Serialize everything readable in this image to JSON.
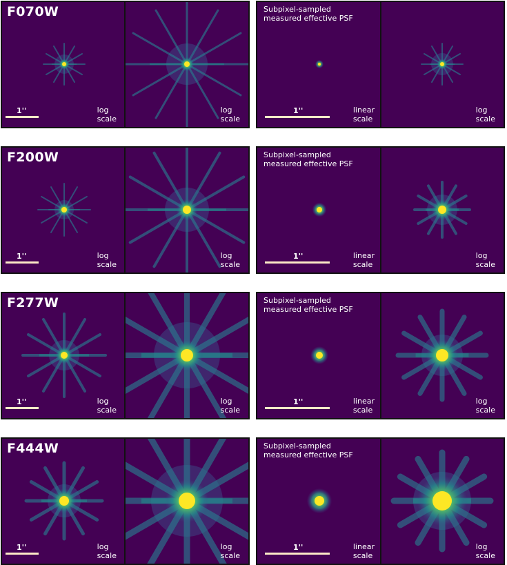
{
  "rows": [
    {
      "filter": "F070W",
      "note_line1": "Subpixel-sampled",
      "note_line2": "measured effective PSF",
      "arcsec": "1''",
      "panels": [
        {
          "scale_line1": "log",
          "scale_line2": "scale"
        },
        {
          "scale_line1": "log",
          "scale_line2": "scale"
        },
        {
          "scale_line1": "linear",
          "scale_line2": "scale"
        },
        {
          "scale_line1": "log",
          "scale_line2": "scale"
        }
      ]
    },
    {
      "filter": "F200W",
      "note_line1": "Subpixel-sampled",
      "note_line2": "measured effective PSF",
      "arcsec": "1''",
      "panels": [
        {
          "scale_line1": "log",
          "scale_line2": "scale"
        },
        {
          "scale_line1": "log",
          "scale_line2": "scale"
        },
        {
          "scale_line1": "linear",
          "scale_line2": "scale"
        },
        {
          "scale_line1": "log",
          "scale_line2": "scale"
        }
      ]
    },
    {
      "filter": "F277W",
      "note_line1": "Subpixel-sampled",
      "note_line2": "measured effective PSF",
      "arcsec": "1''",
      "panels": [
        {
          "scale_line1": "log",
          "scale_line2": "scale"
        },
        {
          "scale_line1": "log",
          "scale_line2": "scale"
        },
        {
          "scale_line1": "linear",
          "scale_line2": "scale"
        },
        {
          "scale_line1": "log",
          "scale_line2": "scale"
        }
      ]
    },
    {
      "filter": "F444W",
      "note_line1": "Subpixel-sampled",
      "note_line2": "measured effective PSF",
      "arcsec": "1''",
      "panels": [
        {
          "scale_line1": "log",
          "scale_line2": "scale"
        },
        {
          "scale_line1": "log",
          "scale_line2": "scale"
        },
        {
          "scale_line1": "linear",
          "scale_line2": "scale"
        },
        {
          "scale_line1": "log",
          "scale_line2": "scale"
        }
      ]
    }
  ],
  "colors": {
    "background": "#440154",
    "core": "#fde725",
    "halo": "#21918c",
    "spike": "#2a788e",
    "scalebar": "#fde9c7"
  }
}
